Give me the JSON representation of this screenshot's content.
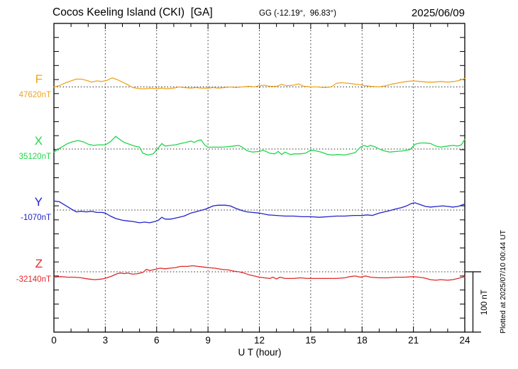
{
  "header": {
    "title": "Cocos Keeling Island (CKI)  [GA]",
    "gg_coords": "GG (-12.19°,  96.83°)",
    "date": "2025/06/09"
  },
  "axis": {
    "xlabel": "U T (hour)",
    "x_major_ticks": [
      0,
      3,
      6,
      9,
      12,
      15,
      18,
      21,
      24
    ]
  },
  "scale_bar": {
    "label": "100 nT",
    "nT": 100
  },
  "footer": {
    "plotted_at": "Plotted at 2025/07/10 00:44 UT"
  },
  "colors": {
    "frame": "#000000",
    "grid": "#222222"
  },
  "chart_data": {
    "type": "line",
    "title": "Cocos Keeling Island (CKI) [GA]",
    "xlabel": "U T (hour)",
    "x_range": [
      0,
      24
    ],
    "x_major_ticks": [
      0,
      3,
      6,
      9,
      12,
      15,
      18,
      21,
      24
    ],
    "grid": "dotted verticals every 3h, dotted baseline per series",
    "legend_position": "left margin",
    "scale_nT_per_bar": 100,
    "series": [
      {
        "name": "F",
        "base_label": "47620nT",
        "bias_nT": 47620,
        "color": "#f0a41e",
        "points": [
          [
            0,
            0
          ],
          [
            0.3,
            2
          ],
          [
            0.7,
            7
          ],
          [
            1,
            10
          ],
          [
            1.3,
            13
          ],
          [
            1.6,
            13
          ],
          [
            1.9,
            11
          ],
          [
            2.2,
            8
          ],
          [
            2.5,
            10
          ],
          [
            2.8,
            9
          ],
          [
            3.1,
            11
          ],
          [
            3.4,
            15
          ],
          [
            3.7,
            12
          ],
          [
            4,
            8
          ],
          [
            4.3,
            4
          ],
          [
            4.6,
            -1
          ],
          [
            5,
            -3
          ],
          [
            5.3,
            -3
          ],
          [
            5.6,
            -2
          ],
          [
            6,
            -3
          ],
          [
            6.3,
            -2
          ],
          [
            6.6,
            -3
          ],
          [
            7,
            -2
          ],
          [
            7.3,
            0
          ],
          [
            7.6,
            -1
          ],
          [
            8,
            -2
          ],
          [
            8.3,
            -1
          ],
          [
            8.6,
            -2
          ],
          [
            9,
            -2
          ],
          [
            9.3,
            -1
          ],
          [
            9.6,
            -2
          ],
          [
            10,
            -1
          ],
          [
            10.3,
            0
          ],
          [
            10.6,
            -1
          ],
          [
            11,
            0
          ],
          [
            11.4,
            1
          ],
          [
            11.7,
            0
          ],
          [
            12,
            2
          ],
          [
            12.3,
            3
          ],
          [
            12.6,
            1
          ],
          [
            13,
            1
          ],
          [
            13.3,
            4
          ],
          [
            13.6,
            2
          ],
          [
            14,
            3
          ],
          [
            14.3,
            5
          ],
          [
            14.6,
            1
          ],
          [
            15,
            0
          ],
          [
            15.4,
            0
          ],
          [
            15.8,
            -1
          ],
          [
            16.2,
            0
          ],
          [
            16.5,
            6
          ],
          [
            16.8,
            7
          ],
          [
            17.2,
            6
          ],
          [
            17.5,
            5
          ],
          [
            17.8,
            4
          ],
          [
            18.2,
            2
          ],
          [
            18.5,
            1
          ],
          [
            19,
            0
          ],
          [
            19.4,
            2
          ],
          [
            19.8,
            5
          ],
          [
            20.2,
            7
          ],
          [
            20.6,
            9
          ],
          [
            21,
            10
          ],
          [
            21.4,
            9
          ],
          [
            21.8,
            8
          ],
          [
            22.2,
            8
          ],
          [
            22.6,
            9
          ],
          [
            23,
            8
          ],
          [
            23.4,
            9
          ],
          [
            23.7,
            11
          ],
          [
            24,
            14
          ]
        ]
      },
      {
        "name": "X",
        "base_label": "35120nT",
        "bias_nT": 35120,
        "color": "#21d64b",
        "points": [
          [
            0,
            -5
          ],
          [
            0.2,
            -1
          ],
          [
            0.5,
            4
          ],
          [
            0.8,
            9
          ],
          [
            1.1,
            12
          ],
          [
            1.4,
            14
          ],
          [
            1.7,
            12
          ],
          [
            2,
            8
          ],
          [
            2.3,
            6
          ],
          [
            2.6,
            7
          ],
          [
            3,
            7
          ],
          [
            3.3,
            12
          ],
          [
            3.6,
            21
          ],
          [
            3.8,
            17
          ],
          [
            4.1,
            11
          ],
          [
            4.4,
            8
          ],
          [
            4.7,
            5
          ],
          [
            5,
            3
          ],
          [
            5.2,
            -7
          ],
          [
            5.5,
            -10
          ],
          [
            5.8,
            -8
          ],
          [
            6.1,
            2
          ],
          [
            6.3,
            9
          ],
          [
            6.5,
            5
          ],
          [
            6.8,
            6
          ],
          [
            7.1,
            7
          ],
          [
            7.4,
            9
          ],
          [
            7.7,
            11
          ],
          [
            8,
            13
          ],
          [
            8.2,
            11
          ],
          [
            8.4,
            14
          ],
          [
            8.6,
            15
          ],
          [
            8.8,
            7
          ],
          [
            9,
            3
          ],
          [
            9.4,
            3
          ],
          [
            9.8,
            3
          ],
          [
            10.2,
            4
          ],
          [
            10.5,
            5
          ],
          [
            10.8,
            6
          ],
          [
            11,
            3
          ],
          [
            11.3,
            -3
          ],
          [
            11.6,
            -5
          ],
          [
            12,
            -4
          ],
          [
            12.2,
            -2
          ],
          [
            12.4,
            -4
          ],
          [
            12.6,
            -7
          ],
          [
            12.9,
            -8
          ],
          [
            13.1,
            -4
          ],
          [
            13.3,
            -9
          ],
          [
            13.5,
            -5
          ],
          [
            13.8,
            -9
          ],
          [
            14.1,
            -8
          ],
          [
            14.4,
            -8
          ],
          [
            14.7,
            -7
          ],
          [
            15,
            -2
          ],
          [
            15.3,
            -3
          ],
          [
            15.6,
            -5
          ],
          [
            16,
            -9
          ],
          [
            16.3,
            -10
          ],
          [
            16.6,
            -9
          ],
          [
            17,
            -10
          ],
          [
            17.3,
            -8
          ],
          [
            17.6,
            -6
          ],
          [
            17.9,
            3
          ],
          [
            18.1,
            6
          ],
          [
            18.3,
            4
          ],
          [
            18.5,
            6
          ],
          [
            18.8,
            3
          ],
          [
            19,
            0
          ],
          [
            19.3,
            -3
          ],
          [
            19.6,
            -5
          ],
          [
            20,
            -4
          ],
          [
            20.4,
            -3
          ],
          [
            20.8,
            -1
          ],
          [
            21.1,
            8
          ],
          [
            21.4,
            10
          ],
          [
            21.7,
            10
          ],
          [
            22,
            9
          ],
          [
            22.3,
            5
          ],
          [
            22.6,
            3
          ],
          [
            23,
            5
          ],
          [
            23.3,
            6
          ],
          [
            23.6,
            5
          ],
          [
            23.8,
            7
          ],
          [
            24,
            16
          ]
        ]
      },
      {
        "name": "Y",
        "base_label": "-1070nT",
        "bias_nT": -1070,
        "color": "#2222cc",
        "points": [
          [
            0,
            15
          ],
          [
            0.3,
            14
          ],
          [
            0.6,
            9
          ],
          [
            1,
            2
          ],
          [
            1.3,
            -3
          ],
          [
            1.6,
            -2
          ],
          [
            1.9,
            -3
          ],
          [
            2.2,
            -2
          ],
          [
            2.5,
            -4
          ],
          [
            2.8,
            -4
          ],
          [
            3,
            -5
          ],
          [
            3.3,
            -10
          ],
          [
            3.6,
            -14
          ],
          [
            4,
            -17
          ],
          [
            4.3,
            -18
          ],
          [
            4.6,
            -19
          ],
          [
            5,
            -21
          ],
          [
            5.3,
            -20
          ],
          [
            5.6,
            -21
          ],
          [
            5.9,
            -19
          ],
          [
            6.1,
            -17
          ],
          [
            6.3,
            -12
          ],
          [
            6.5,
            -15
          ],
          [
            6.8,
            -15
          ],
          [
            7,
            -14
          ],
          [
            7.3,
            -12
          ],
          [
            7.6,
            -10
          ],
          [
            8,
            -5
          ],
          [
            8.4,
            -2
          ],
          [
            8.8,
            1
          ],
          [
            9,
            3
          ],
          [
            9.3,
            7
          ],
          [
            9.6,
            8
          ],
          [
            10,
            8
          ],
          [
            10.3,
            7
          ],
          [
            10.6,
            3
          ],
          [
            11,
            -1
          ],
          [
            11.3,
            -3
          ],
          [
            11.6,
            -4
          ],
          [
            12,
            -5
          ],
          [
            12.5,
            -8
          ],
          [
            13,
            -9
          ],
          [
            13.5,
            -10
          ],
          [
            14,
            -10
          ],
          [
            14.5,
            -11
          ],
          [
            15,
            -11
          ],
          [
            15.5,
            -12
          ],
          [
            16,
            -11
          ],
          [
            16.5,
            -10
          ],
          [
            17,
            -10
          ],
          [
            17.5,
            -9
          ],
          [
            18,
            -9
          ],
          [
            18.3,
            -8
          ],
          [
            18.6,
            -9
          ],
          [
            19,
            -5
          ],
          [
            19.3,
            -3
          ],
          [
            19.6,
            -1
          ],
          [
            20,
            2
          ],
          [
            20.3,
            4
          ],
          [
            20.6,
            7
          ],
          [
            20.9,
            11
          ],
          [
            21.1,
            12
          ],
          [
            21.4,
            9
          ],
          [
            21.7,
            6
          ],
          [
            22,
            5
          ],
          [
            22.4,
            6
          ],
          [
            22.7,
            7
          ],
          [
            23,
            6
          ],
          [
            23.3,
            5
          ],
          [
            23.6,
            6
          ],
          [
            24,
            10
          ]
        ]
      },
      {
        "name": "Z",
        "base_label": "-32140nT",
        "bias_nT": -32140,
        "color": "#e02929",
        "points": [
          [
            0,
            -9
          ],
          [
            0.4,
            -8
          ],
          [
            0.8,
            -9
          ],
          [
            1.2,
            -9
          ],
          [
            1.6,
            -10
          ],
          [
            2,
            -12
          ],
          [
            2.4,
            -13
          ],
          [
            2.8,
            -12
          ],
          [
            3.1,
            -10
          ],
          [
            3.4,
            -7
          ],
          [
            3.7,
            -3
          ],
          [
            3.9,
            -2
          ],
          [
            4.1,
            -3
          ],
          [
            4.3,
            -2
          ],
          [
            4.6,
            -4
          ],
          [
            4.9,
            -3
          ],
          [
            5.2,
            -1
          ],
          [
            5.4,
            4
          ],
          [
            5.6,
            2
          ],
          [
            5.9,
            4
          ],
          [
            6.2,
            6
          ],
          [
            6.5,
            5
          ],
          [
            6.8,
            6
          ],
          [
            7.1,
            7
          ],
          [
            7.4,
            9
          ],
          [
            7.8,
            9
          ],
          [
            8.1,
            10
          ],
          [
            8.4,
            9
          ],
          [
            8.7,
            8
          ],
          [
            9,
            7
          ],
          [
            9.4,
            6
          ],
          [
            9.8,
            4
          ],
          [
            10.2,
            3
          ],
          [
            10.5,
            1
          ],
          [
            10.8,
            0
          ],
          [
            11.1,
            -2
          ],
          [
            11.4,
            -5
          ],
          [
            11.7,
            -7
          ],
          [
            12,
            -9
          ],
          [
            12.3,
            -10
          ],
          [
            12.6,
            -11
          ],
          [
            12.8,
            -9
          ],
          [
            13,
            -12
          ],
          [
            13.2,
            -9
          ],
          [
            13.5,
            -11
          ],
          [
            14,
            -11
          ],
          [
            14.4,
            -10
          ],
          [
            14.8,
            -11
          ],
          [
            15.2,
            -11
          ],
          [
            15.6,
            -11
          ],
          [
            16,
            -11
          ],
          [
            16.5,
            -11
          ],
          [
            17,
            -10
          ],
          [
            17.3,
            -8
          ],
          [
            17.6,
            -7
          ],
          [
            17.9,
            -9
          ],
          [
            18.2,
            -7
          ],
          [
            18.5,
            -9
          ],
          [
            19,
            -10
          ],
          [
            19.5,
            -10
          ],
          [
            20,
            -9
          ],
          [
            20.5,
            -9
          ],
          [
            21,
            -8
          ],
          [
            21.3,
            -9
          ],
          [
            21.6,
            -10
          ],
          [
            22,
            -13
          ],
          [
            22.3,
            -14
          ],
          [
            22.6,
            -13
          ],
          [
            23,
            -14
          ],
          [
            23.3,
            -13
          ],
          [
            23.6,
            -11
          ],
          [
            24,
            -8
          ]
        ]
      }
    ]
  }
}
